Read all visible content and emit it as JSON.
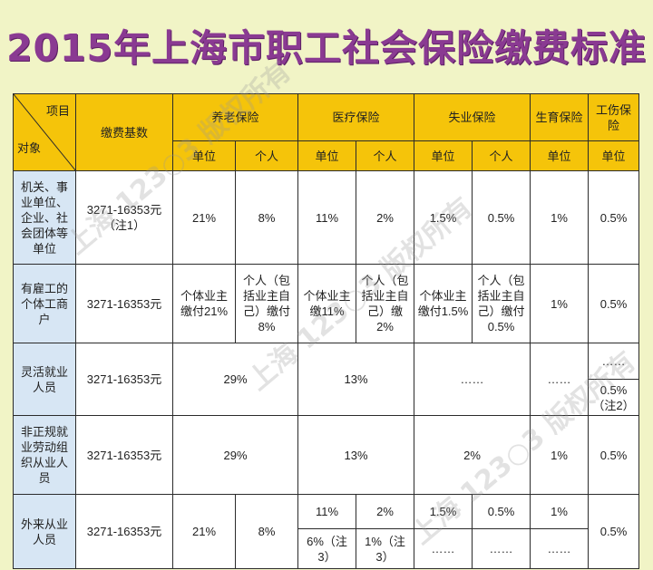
{
  "title": "2015年上海市职工社会保险缴费标准",
  "watermark": "上海 123○3 版权所有",
  "colors": {
    "header": "#f5c40a",
    "object_col": "#d7e6f4",
    "title": "#8a3a92",
    "background": "#f1f4c6"
  },
  "table": {
    "corner_item": "项目",
    "corner_object": "对象",
    "base_header": "缴费基数",
    "groups": {
      "pension": "养老保险",
      "medical": "医疗保险",
      "unemployment": "失业保险",
      "maternity": "生育保险",
      "injury": "工伤保险"
    },
    "sub": {
      "unit": "单位",
      "person": "个人"
    },
    "rows": {
      "r1": {
        "object": "机关、事业单位、企业、社会团体等单位",
        "base": "3271-16353元（注1）",
        "p_unit": "21%",
        "p_person": "8%",
        "m_unit": "11%",
        "m_person": "2%",
        "u_unit": "1.5%",
        "u_person": "0.5%",
        "mat": "1%",
        "inj": "0.5%"
      },
      "r2": {
        "object": "有雇工的个体工商户",
        "base": "3271-16353元",
        "p_unit": "个体业主缴付21%",
        "p_person": "个人（包括业主自己）缴付8%",
        "m_unit": "个体业主缴11%",
        "m_person": "个人（包括业主自己）缴2%",
        "u_unit": "个体业主缴付1.5%",
        "u_person": "个人（包括业主自己）缴付0.5%",
        "mat": "1%",
        "inj": "0.5%"
      },
      "r3": {
        "object": "灵活就业人员",
        "base": "3271-16353元",
        "pension": "29%",
        "medical": "13%",
        "unemployment": "……",
        "mat": "……",
        "inj_top": "……",
        "inj_bottom": "0.5%（注2）"
      },
      "r4": {
        "object": "非正规就业劳动组织从业人员",
        "base": "3271-16353元",
        "pension": "29%",
        "medical": "13%",
        "unemployment": "2%",
        "mat": "1%",
        "inj": "0.5%"
      },
      "r5": {
        "object": "外来从业人员",
        "base": "3271-16353元",
        "p_unit": "21%",
        "p_person": "8%",
        "m_unit_a": "11%",
        "m_person_a": "2%",
        "u_unit_a": "1.5%",
        "u_person_a": "0.5%",
        "mat_a": "1%",
        "m_unit_b": "6%（注3）",
        "m_person_b": "1%（注3）",
        "u_unit_b": "……",
        "u_person_b": "……",
        "mat_b": "……",
        "inj": "0.5%"
      }
    }
  }
}
